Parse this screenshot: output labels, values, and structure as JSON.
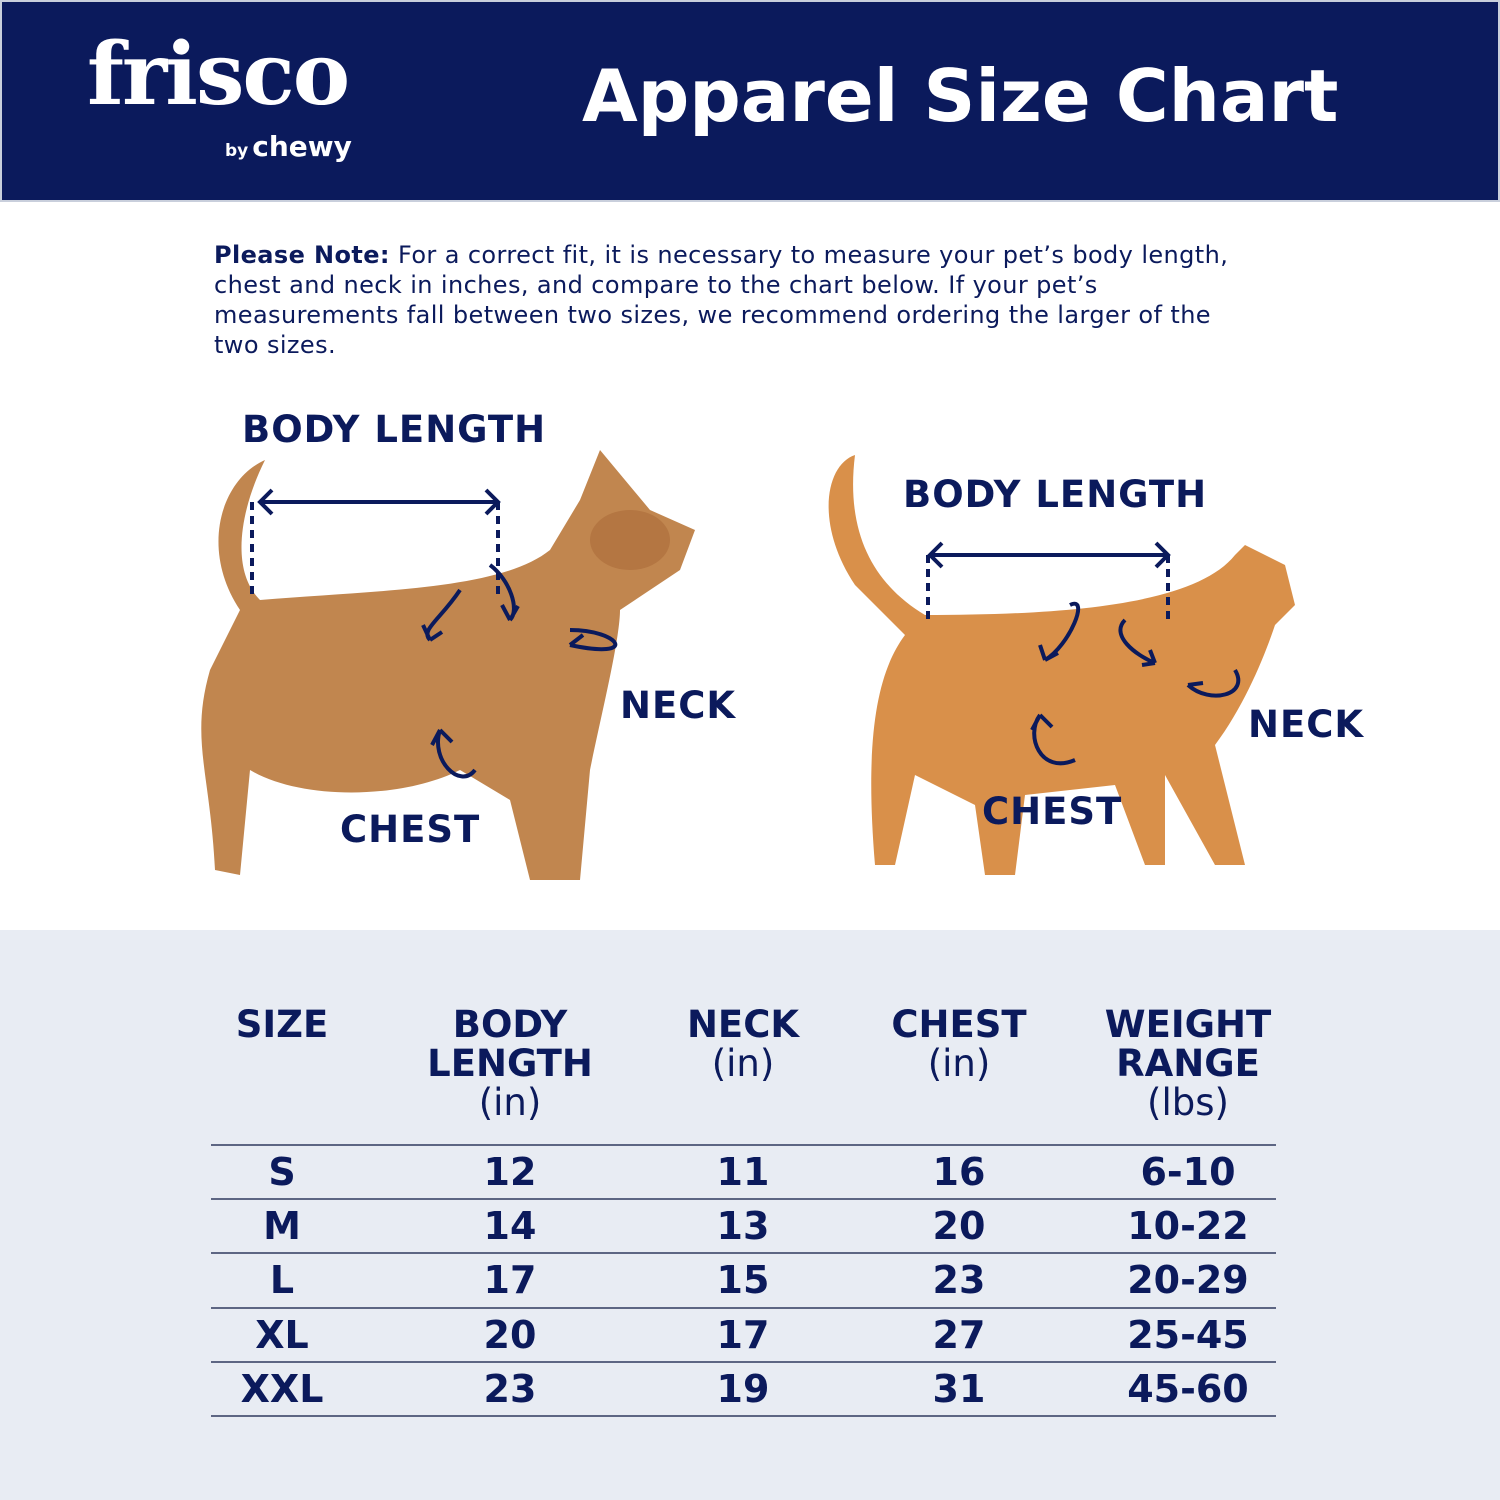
{
  "header": {
    "logo_brand": "frisco",
    "logo_by": "by",
    "logo_sub": "chewy",
    "title": "Apparel Size Chart"
  },
  "note": {
    "label": "Please Note:",
    "text": " For a correct fit, it is necessary to measure your pet’s body length, chest and neck in inches, and compare to the chart below. If your pet’s measurements fall between two sizes, we recommend ordering the larger of the two sizes."
  },
  "dog": {
    "body_length": "BODY LENGTH",
    "neck": "NECK",
    "chest": "CHEST"
  },
  "cat": {
    "body_length": "BODY LENGTH",
    "neck": "NECK",
    "chest": "CHEST"
  },
  "table": {
    "headers": [
      {
        "title": "SIZE",
        "unit": ""
      },
      {
        "title": "BODY LENGTH",
        "unit": "(in)"
      },
      {
        "title": "NECK",
        "unit": "(in)"
      },
      {
        "title": "CHEST",
        "unit": "(in)"
      },
      {
        "title": "WEIGHT RANGE",
        "unit": "(lbs)"
      }
    ],
    "rows": [
      [
        "S",
        "12",
        "11",
        "16",
        "6-10"
      ],
      [
        "M",
        "14",
        "13",
        "20",
        "10-22"
      ],
      [
        "L",
        "17",
        "15",
        "23",
        "20-29"
      ],
      [
        "XL",
        "20",
        "17",
        "27",
        "25-45"
      ],
      [
        "XXL",
        "23",
        "19",
        "31",
        "45-60"
      ]
    ]
  },
  "colors": {
    "navy": "#0b1a5c",
    "table_bg": "#e8ecf3",
    "dog": "#c1864f",
    "cat": "#d9904a"
  }
}
